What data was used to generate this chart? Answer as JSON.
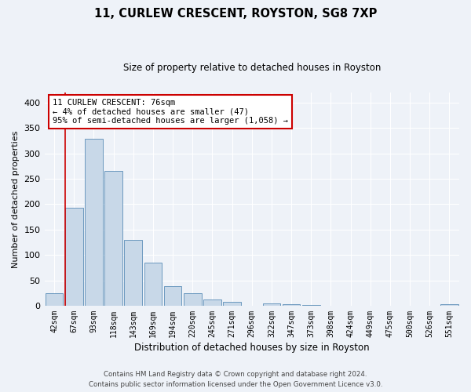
{
  "title": "11, CURLEW CRESCENT, ROYSTON, SG8 7XP",
  "subtitle": "Size of property relative to detached houses in Royston",
  "xlabel": "Distribution of detached houses by size in Royston",
  "ylabel": "Number of detached properties",
  "bar_labels": [
    "42sqm",
    "67sqm",
    "93sqm",
    "118sqm",
    "143sqm",
    "169sqm",
    "194sqm",
    "220sqm",
    "245sqm",
    "271sqm",
    "296sqm",
    "322sqm",
    "347sqm",
    "373sqm",
    "398sqm",
    "424sqm",
    "449sqm",
    "475sqm",
    "500sqm",
    "526sqm",
    "551sqm"
  ],
  "bar_values": [
    25,
    193,
    328,
    265,
    130,
    85,
    38,
    25,
    13,
    7,
    0,
    5,
    3,
    2,
    0,
    0,
    0,
    0,
    0,
    0,
    3
  ],
  "bar_color": "#c8d8e8",
  "bar_edge_color": "#5b8db8",
  "vline_color": "#cc0000",
  "annotation_text": "11 CURLEW CRESCENT: 76sqm\n← 4% of detached houses are smaller (47)\n95% of semi-detached houses are larger (1,058) →",
  "annotation_box_color": "#ffffff",
  "annotation_box_edge": "#cc0000",
  "ylim": [
    0,
    420
  ],
  "yticks": [
    0,
    50,
    100,
    150,
    200,
    250,
    300,
    350,
    400
  ],
  "footer1": "Contains HM Land Registry data © Crown copyright and database right 2024.",
  "footer2": "Contains public sector information licensed under the Open Government Licence v3.0.",
  "background_color": "#eef2f8",
  "grid_color": "#ffffff"
}
